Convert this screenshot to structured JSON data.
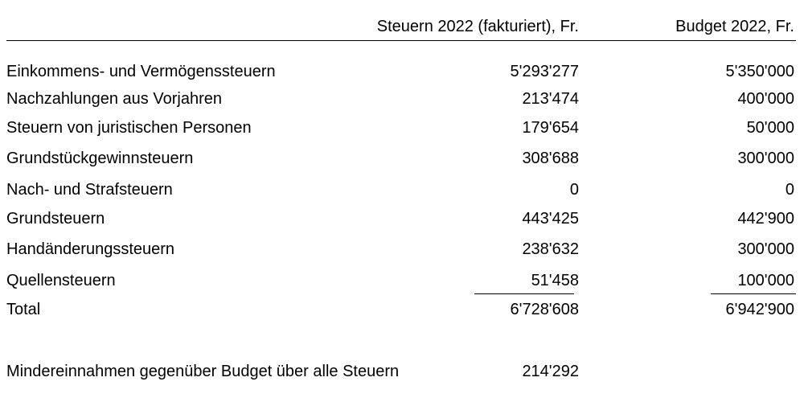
{
  "table": {
    "headers": {
      "col1": "Steuern 2022 (fakturiert), Fr.",
      "col2": "Budget 2022, Fr."
    },
    "rows": [
      {
        "label": "Einkommens- und Vermögenssteuern",
        "v1": "5'293'277",
        "v2": "5'350'000"
      },
      {
        "label": "Nachzahlungen aus Vorjahren",
        "v1": "213'474",
        "v2": "400'000"
      },
      {
        "label": "Steuern von juristischen Personen",
        "v1": "179'654",
        "v2": "50'000"
      },
      {
        "label": "Grundstückgewinnsteuern",
        "v1": "308'688",
        "v2": "300'000"
      },
      {
        "label": "Nach- und Strafsteuern",
        "v1": "0",
        "v2": "0"
      },
      {
        "label": "Grundsteuern",
        "v1": "443'425",
        "v2": "442'900"
      },
      {
        "label": "Handänderungssteuern",
        "v1": "238'632",
        "v2": "300'000"
      },
      {
        "label": "Quellensteuern",
        "v1": "51'458",
        "v2": "100'000"
      }
    ],
    "total": {
      "label": "Total",
      "v1": "6'728'608",
      "v2": "6'942'900"
    }
  },
  "summary": {
    "label": "Mindereinnahmen gegenüber Budget über alle Steuern",
    "value": "214'292"
  }
}
